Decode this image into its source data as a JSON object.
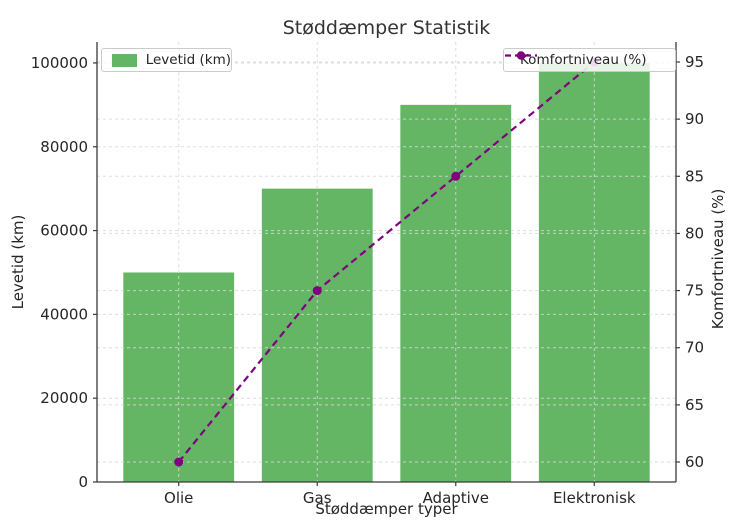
{
  "chart_data": {
    "type": "combo",
    "title": "Støddæmper Statistik",
    "xlabel": "Støddæmper typer",
    "categories": [
      "Olie",
      "Gas",
      "Adaptive",
      "Elektronisk"
    ],
    "series": [
      {
        "name": "Levetid (km)",
        "type": "bar",
        "axis": "left",
        "values": [
          50000,
          70000,
          90000,
          100000
        ],
        "color": "#64b564"
      },
      {
        "name": "Komfortniveau (%)",
        "type": "line",
        "axis": "right",
        "values": [
          60,
          75,
          85,
          95
        ],
        "color": "#800080",
        "linestyle": "dashed",
        "marker": "circle"
      }
    ],
    "left_axis": {
      "label": "Levetid (km)",
      "ticks": [
        0,
        20000,
        40000,
        60000,
        80000,
        100000
      ],
      "range": [
        0,
        105000
      ]
    },
    "right_axis": {
      "label": "Komfortniveau (%)",
      "ticks": [
        60,
        65,
        70,
        75,
        80,
        85,
        90,
        95
      ],
      "range": [
        58.25,
        96.75
      ]
    },
    "x_range": [
      -0.59,
      3.59
    ],
    "bar_width": 0.8,
    "grid": {
      "visible": true,
      "style": "dashed",
      "color": "#d9d9d9"
    },
    "legend": {
      "bar": {
        "label": "Levetid (km)",
        "position": "upper left"
      },
      "line": {
        "label": "Komfortniveau (%)",
        "position": "upper right"
      }
    },
    "colors": {
      "text": "#262626",
      "title": "#333333",
      "spine": "#3a3a3a",
      "background": "#ffffff"
    }
  }
}
